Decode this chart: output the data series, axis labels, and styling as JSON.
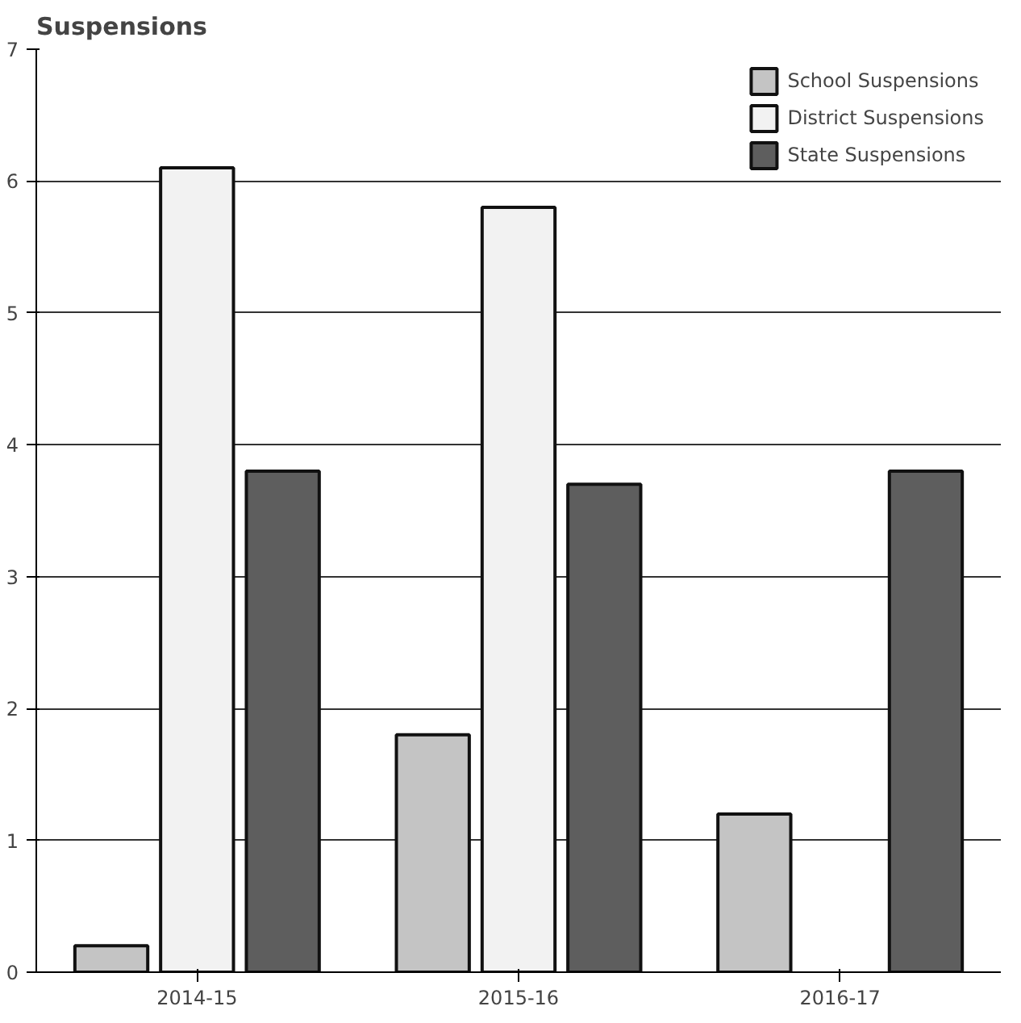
{
  "chart_data": {
    "type": "bar",
    "title": "Suspensions",
    "categories": [
      "2014-15",
      "2015-16",
      "2016-17"
    ],
    "series": [
      {
        "name": "School Suspensions",
        "color": "#c4c4c4",
        "values": [
          0.2,
          1.8,
          1.2
        ]
      },
      {
        "name": "District Suspensions",
        "color": "#f2f2f2",
        "values": [
          6.1,
          5.8,
          null
        ]
      },
      {
        "name": "State Suspensions",
        "color": "#5e5e5e",
        "values": [
          3.8,
          3.7,
          3.8
        ]
      }
    ],
    "ylim": [
      0,
      7
    ],
    "yticks": [
      0,
      1,
      2,
      3,
      4,
      5,
      6,
      7
    ],
    "grid": "y",
    "legend": "top right"
  }
}
